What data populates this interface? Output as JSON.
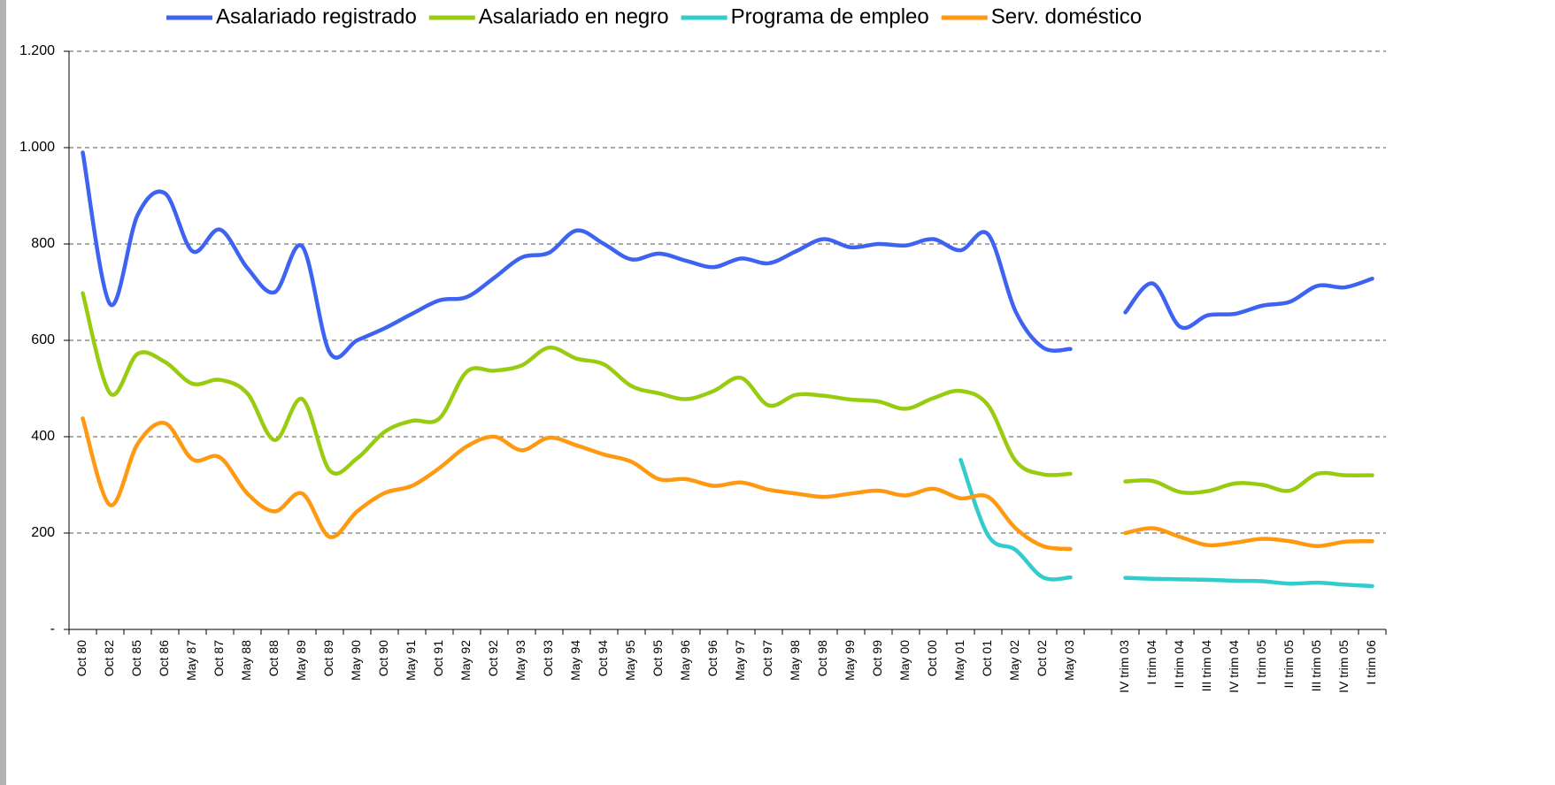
{
  "chart_data": {
    "type": "line",
    "categories": [
      "Oct 80",
      "Oct 82",
      "Oct 85",
      "Oct 86",
      "May 87",
      "Oct 87",
      "May 88",
      "Oct 88",
      "May 89",
      "Oct 89",
      "May 90",
      "Oct 90",
      "May 91",
      "Oct 91",
      "May 92",
      "Oct 92",
      "May 93",
      "Oct 93",
      "May 94",
      "Oct 94",
      "May 95",
      "Oct 95",
      "May 96",
      "Oct 96",
      "May 97",
      "Oct 97",
      "May 98",
      "Oct 98",
      "May 99",
      "Oct 99",
      "May 00",
      "Oct 00",
      "May 01",
      "Oct 01",
      "May 02",
      "Oct 02",
      "May 03",
      null,
      "IV trim 03",
      "I trim 04",
      "II trim 04",
      "III trim 04",
      "IV trim 04",
      "I trim 05",
      "II trim 05",
      "III trim 05",
      "IV trim 05",
      "I trim 06"
    ],
    "series": [
      {
        "name": "Asalariado registrado",
        "color": "#3d63f0",
        "values": [
          990,
          675,
          860,
          905,
          785,
          830,
          750,
          700,
          795,
          575,
          600,
          625,
          655,
          683,
          690,
          730,
          772,
          782,
          828,
          800,
          768,
          780,
          765,
          752,
          770,
          760,
          785,
          810,
          793,
          800,
          797,
          810,
          787,
          820,
          660,
          585,
          582,
          null,
          658,
          718,
          628,
          652,
          655,
          672,
          680,
          713,
          710,
          728
        ]
      },
      {
        "name": "Asalariado en negro",
        "color": "#99cc11",
        "values": [
          698,
          490,
          572,
          555,
          510,
          518,
          490,
          393,
          478,
          330,
          355,
          410,
          433,
          438,
          535,
          537,
          548,
          585,
          562,
          550,
          505,
          490,
          478,
          495,
          522,
          465,
          487,
          485,
          477,
          473,
          458,
          480,
          495,
          465,
          350,
          322,
          323,
          null,
          307,
          308,
          285,
          287,
          303,
          300,
          288,
          323,
          320,
          320
        ]
      },
      {
        "name": "Programa de empleo",
        "color": "#33cccc",
        "values": [
          null,
          null,
          null,
          null,
          null,
          null,
          null,
          null,
          null,
          null,
          null,
          null,
          null,
          null,
          null,
          null,
          null,
          null,
          null,
          null,
          null,
          null,
          null,
          null,
          null,
          null,
          null,
          null,
          null,
          null,
          null,
          null,
          352,
          195,
          165,
          108,
          108,
          null,
          107,
          105,
          104,
          103,
          101,
          100,
          95,
          97,
          93,
          90
        ]
      },
      {
        "name": "Serv. doméstico",
        "color": "#ff9911",
        "values": [
          438,
          258,
          385,
          428,
          353,
          357,
          282,
          245,
          282,
          192,
          245,
          283,
          298,
          335,
          380,
          400,
          372,
          398,
          382,
          363,
          348,
          312,
          312,
          298,
          305,
          290,
          282,
          275,
          282,
          288,
          278,
          292,
          272,
          275,
          210,
          173,
          167,
          null,
          200,
          210,
          192,
          175,
          180,
          188,
          183,
          173,
          182,
          183
        ]
      }
    ],
    "ylim": [
      0,
      1200
    ],
    "yticks": [
      {
        "value": 0,
        "label": "-"
      },
      200,
      400,
      600,
      800,
      {
        "value": 1000,
        "label": "1.000"
      },
      {
        "value": 1200,
        "label": "1.200"
      }
    ],
    "grid": true,
    "legend": "top"
  }
}
